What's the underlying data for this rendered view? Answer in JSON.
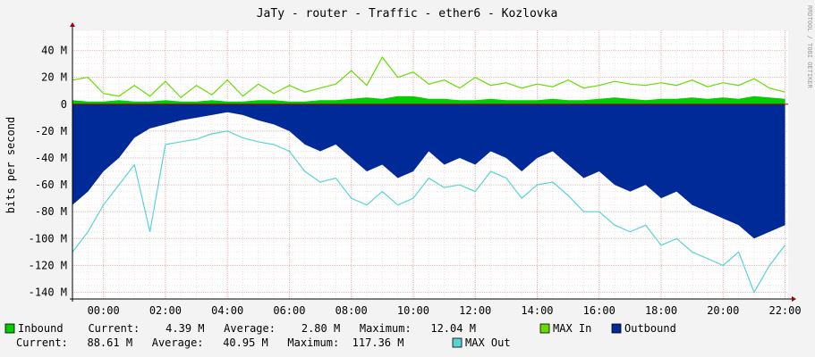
{
  "chart_data": {
    "type": "area",
    "title": "JaTy - router - Traffic - ether6 - Kozlovka",
    "ylabel": "bits per second",
    "watermark": "RRDTOOL / TOBI OETIKER",
    "ylim": [
      -145,
      55
    ],
    "y_ticks": [
      40,
      20,
      0,
      -20,
      -40,
      -60,
      -80,
      -100,
      -120,
      -140
    ],
    "y_tick_labels": [
      "40 M",
      "20 M",
      "0",
      "-20 M",
      "-40 M",
      "-60 M",
      "-80 M",
      "-100 M",
      "-120 M",
      "-140 M"
    ],
    "x_range_hours": [
      -1,
      22.1
    ],
    "x_ticks": [
      0,
      2,
      4,
      6,
      8,
      10,
      12,
      14,
      16,
      18,
      20,
      22
    ],
    "x_tick_labels": [
      "00:00",
      "02:00",
      "04:00",
      "06:00",
      "08:00",
      "10:00",
      "12:00",
      "14:00",
      "16:00",
      "18:00",
      "20:00",
      "22:00"
    ],
    "grid": true,
    "colors": {
      "inbound": "#00cc00",
      "max_in": "#66dd00",
      "outbound": "#002a97",
      "max_out": "#55d6d3",
      "arrow": "#a00000",
      "grid": "#e5b8b8"
    },
    "series": [
      {
        "name": "Inbound",
        "hours": [
          -1,
          -0.5,
          0,
          0.5,
          1,
          1.5,
          2,
          2.5,
          3,
          3.5,
          4,
          4.5,
          5,
          5.5,
          6,
          6.5,
          7,
          7.5,
          8,
          8.5,
          9,
          9.5,
          10,
          10.5,
          11,
          11.5,
          12,
          12.5,
          13,
          13.5,
          14,
          14.5,
          15,
          15.5,
          16,
          16.5,
          17,
          17.5,
          18,
          18.5,
          19,
          19.5,
          20,
          20.5,
          21,
          21.5,
          22
        ],
        "values": [
          3,
          2,
          2,
          3,
          2,
          2,
          3,
          2,
          2,
          3,
          2,
          2,
          3,
          3,
          2,
          2,
          3,
          3,
          4,
          5,
          4,
          6,
          6,
          4,
          4,
          3,
          3,
          4,
          3,
          3,
          3,
          4,
          3,
          3,
          4,
          5,
          4,
          3,
          4,
          4,
          5,
          4,
          5,
          4,
          6,
          5,
          4
        ]
      },
      {
        "name": "MAX In",
        "hours": [
          -1,
          -0.5,
          0,
          0.5,
          1,
          1.5,
          2,
          2.5,
          3,
          3.5,
          4,
          4.5,
          5,
          5.5,
          6,
          6.5,
          7,
          7.5,
          8,
          8.5,
          9,
          9.5,
          10,
          10.5,
          11,
          11.5,
          12,
          12.5,
          13,
          13.5,
          14,
          14.5,
          15,
          15.5,
          16,
          16.5,
          17,
          17.5,
          18,
          18.5,
          19,
          19.5,
          20,
          20.5,
          21,
          21.5,
          22
        ],
        "values": [
          18,
          20,
          8,
          6,
          14,
          6,
          17,
          5,
          14,
          7,
          18,
          6,
          15,
          8,
          14,
          9,
          12,
          15,
          25,
          14,
          35,
          20,
          24,
          15,
          18,
          12,
          20,
          14,
          16,
          12,
          15,
          13,
          18,
          12,
          14,
          17,
          15,
          14,
          16,
          14,
          18,
          13,
          16,
          14,
          19,
          12,
          9
        ]
      },
      {
        "name": "Outbound",
        "hours": [
          -1,
          -0.5,
          0,
          0.5,
          1,
          1.5,
          2,
          2.5,
          3,
          3.5,
          4,
          4.5,
          5,
          5.5,
          6,
          6.5,
          7,
          7.5,
          8,
          8.5,
          9,
          9.5,
          10,
          10.5,
          11,
          11.5,
          12,
          12.5,
          13,
          13.5,
          14,
          14.5,
          15,
          15.5,
          16,
          16.5,
          17,
          17.5,
          18,
          18.5,
          19,
          19.5,
          20,
          20.5,
          21,
          21.5,
          22
        ],
        "values": [
          -75,
          -65,
          -50,
          -40,
          -25,
          -18,
          -15,
          -12,
          -10,
          -8,
          -6,
          -8,
          -12,
          -15,
          -20,
          -30,
          -35,
          -30,
          -40,
          -50,
          -45,
          -55,
          -50,
          -35,
          -45,
          -40,
          -45,
          -35,
          -40,
          -50,
          -40,
          -35,
          -45,
          -55,
          -50,
          -60,
          -65,
          -60,
          -70,
          -65,
          -75,
          -80,
          -85,
          -90,
          -100,
          -95,
          -90
        ]
      },
      {
        "name": "MAX Out",
        "hours": [
          -1,
          -0.5,
          0,
          0.5,
          1,
          1.5,
          2,
          2.5,
          3,
          3.5,
          4,
          4.5,
          5,
          5.5,
          6,
          6.5,
          7,
          7.5,
          8,
          8.5,
          9,
          9.5,
          10,
          10.5,
          11,
          11.5,
          12,
          12.5,
          13,
          13.5,
          14,
          14.5,
          15,
          15.5,
          16,
          16.5,
          17,
          17.5,
          18,
          18.5,
          19,
          19.5,
          20,
          20.5,
          21,
          21.5,
          22
        ],
        "values": [
          -110,
          -95,
          -75,
          -60,
          -45,
          -95,
          -30,
          -28,
          -26,
          -22,
          -20,
          -25,
          -28,
          -30,
          -35,
          -50,
          -58,
          -55,
          -70,
          -75,
          -65,
          -75,
          -70,
          -55,
          -62,
          -60,
          -65,
          -50,
          -55,
          -70,
          -60,
          -58,
          -68,
          -80,
          -80,
          -90,
          -95,
          -90,
          -105,
          -100,
          -110,
          -115,
          -120,
          -110,
          -140,
          -120,
          -105
        ]
      }
    ]
  },
  "legend": {
    "inbound_label": "Inbound",
    "inbound_stats": "  Current:    4.39 M   Average:    2.80 M   Maximum:   12.04 M",
    "max_in_label": "MAX In",
    "outbound_label": "Outbound",
    "outbound_stats": "Current:   88.61 M   Average:   40.95 M   Maximum:  117.36 M",
    "max_out_label": "MAX Out"
  }
}
